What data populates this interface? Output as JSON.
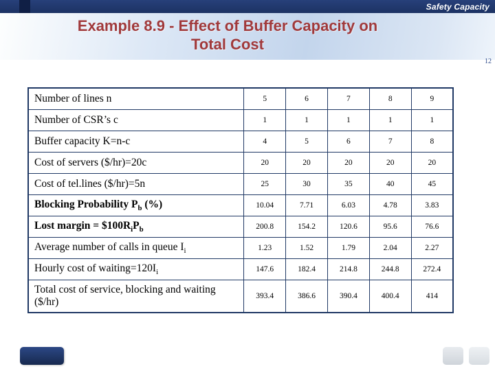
{
  "slide": {
    "header_label": "Safety Capacity",
    "title_line1": "Example 8.9 - Effect of Buffer Capacity on",
    "title_line2": "Total Cost",
    "slide_number": "12"
  },
  "colors": {
    "bar_navy": "#1f3864",
    "title_maroon": "#a0393b",
    "band_blue": "#c3d5ec",
    "table_border": "#1f3864"
  },
  "table": {
    "rows": [
      {
        "label_html": "Number of lines n",
        "bold": false,
        "values": [
          "5",
          "6",
          "7",
          "8",
          "9"
        ]
      },
      {
        "label_html": "Number of CSR’s c",
        "bold": false,
        "values": [
          "1",
          "1",
          "1",
          "1",
          "1"
        ]
      },
      {
        "label_html": "Buffer capacity K=n-c",
        "bold": false,
        "values": [
          "4",
          "5",
          "6",
          "7",
          "8"
        ]
      },
      {
        "label_html": "Cost of servers ($/hr)=20c",
        "bold": false,
        "values": [
          "20",
          "20",
          "20",
          "20",
          "20"
        ]
      },
      {
        "label_html": "Cost of tel.lines ($/hr)=5n",
        "bold": false,
        "values": [
          "25",
          "30",
          "35",
          "40",
          "45"
        ]
      },
      {
        "label_html": "Blocking Probability P<sub>b</sub> (%)",
        "bold": true,
        "values": [
          "10.04",
          "7.71",
          "6.03",
          "4.78",
          "3.83"
        ]
      },
      {
        "label_html": "Lost margin = $100R<sub>i</sub>P<sub>b</sub>",
        "bold": true,
        "values": [
          "200.8",
          "154.2",
          "120.6",
          "95.6",
          "76.6"
        ]
      },
      {
        "label_html": "Average number of calls in queue I<sub>i</sub>",
        "bold": false,
        "values": [
          "1.23",
          "1.52",
          "1.79",
          "2.04",
          "2.27"
        ]
      },
      {
        "label_html": "Hourly cost of waiting=120I<sub>i</sub>",
        "bold": false,
        "values": [
          "147.6",
          "182.4",
          "214.8",
          "244.8",
          "272.4"
        ]
      },
      {
        "label_html": "Total cost of service, blocking and waiting ($/hr)",
        "bold": false,
        "values": [
          "393.4",
          "386.6",
          "390.4",
          "400.4",
          "414"
        ]
      }
    ]
  }
}
